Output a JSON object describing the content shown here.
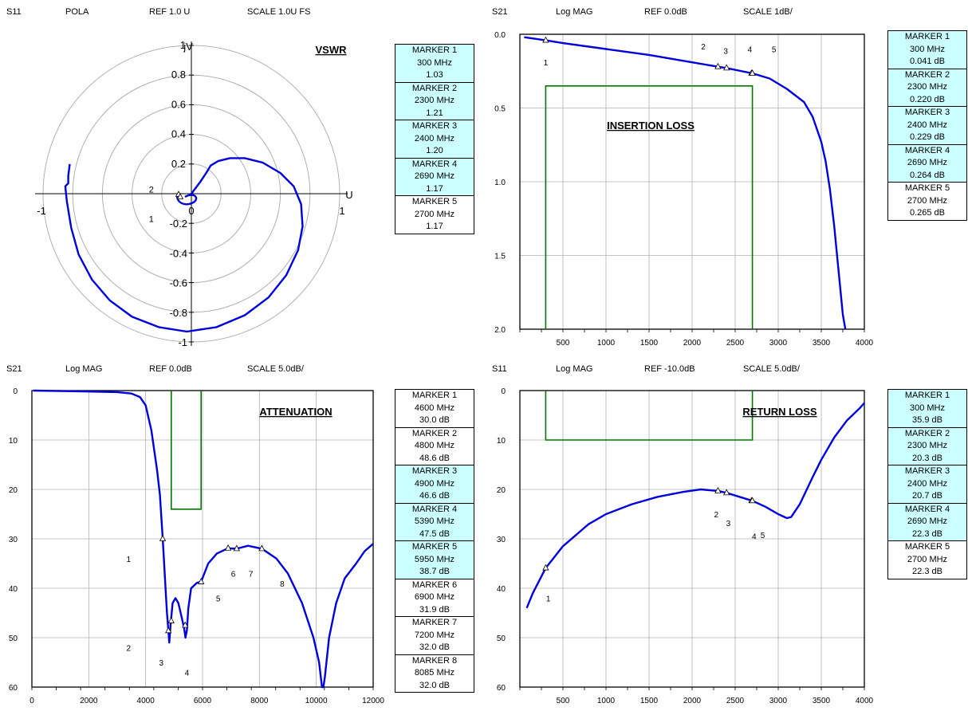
{
  "panels": [
    {
      "header": {
        "param": "S11",
        "format": "POLA",
        "ref": "REF 1.0 U",
        "scale": "SCALE 1.0U FS"
      },
      "title": "VSWR",
      "markers": [
        {
          "name": "MARKER 1",
          "freq": "300 MHz",
          "value": "1.03",
          "highlight": true
        },
        {
          "name": "MARKER 2",
          "freq": "2300 MHz",
          "value": "1.21",
          "highlight": true
        },
        {
          "name": "MARKER 3",
          "freq": "2400 MHz",
          "value": "1.20",
          "highlight": true
        },
        {
          "name": "MARKER 4",
          "freq": "2690 MHz",
          "value": "1.17",
          "highlight": true
        },
        {
          "name": "MARKER 5",
          "freq": "2700 MHz",
          "value": "1.17",
          "highlight": false
        }
      ]
    },
    {
      "header": {
        "param": "S21",
        "format": "Log MAG",
        "ref": "REF 0.0dB",
        "scale": "SCALE 1dB/"
      },
      "title": "INSERTION  LOSS",
      "markers": [
        {
          "name": "MARKER 1",
          "freq": "300 MHz",
          "value": "0.041 dB",
          "highlight": true
        },
        {
          "name": "MARKER 2",
          "freq": "2300 MHz",
          "value": "0.220 dB",
          "highlight": true
        },
        {
          "name": "MARKER 3",
          "freq": "2400 MHz",
          "value": "0.229 dB",
          "highlight": true
        },
        {
          "name": "MARKER 4",
          "freq": "2690 MHz",
          "value": "0.264 dB",
          "highlight": true
        },
        {
          "name": "MARKER 5",
          "freq": "2700 MHz",
          "value": "0.265 dB",
          "highlight": false
        }
      ]
    },
    {
      "header": {
        "param": "S21",
        "format": "Log MAG",
        "ref": "REF 0.0dB",
        "scale": "SCALE 5.0dB/"
      },
      "title": "ATTENUATION",
      "markers": [
        {
          "name": "MARKER 1",
          "freq": "4600 MHz",
          "value": "30.0 dB",
          "highlight": false
        },
        {
          "name": "MARKER 2",
          "freq": "4800 MHz",
          "value": "48.6 dB",
          "highlight": false
        },
        {
          "name": "MARKER 3",
          "freq": "4900 MHz",
          "value": "46.6 dB",
          "highlight": true
        },
        {
          "name": "MARKER 4",
          "freq": "5390 MHz",
          "value": "47.5 dB",
          "highlight": true
        },
        {
          "name": "MARKER 5",
          "freq": "5950 MHz",
          "value": "38.7 dB",
          "highlight": true
        },
        {
          "name": "MARKER 6",
          "freq": "6900 MHz",
          "value": "31.9 dB",
          "highlight": false
        },
        {
          "name": "MARKER 7",
          "freq": "7200 MHz",
          "value": "32.0 dB",
          "highlight": false
        },
        {
          "name": "MARKER 8",
          "freq": "8085 MHz",
          "value": "32.0 dB",
          "highlight": false
        }
      ]
    },
    {
      "header": {
        "param": "S11",
        "format": "Log MAG",
        "ref": "REF -10.0dB",
        "scale": "SCALE 5.0dB/"
      },
      "title": "RETURN LOSS",
      "markers": [
        {
          "name": "MARKER 1",
          "freq": "300 MHz",
          "value": "35.9 dB",
          "highlight": true
        },
        {
          "name": "MARKER 2",
          "freq": "2300 MHz",
          "value": "20.3 dB",
          "highlight": true
        },
        {
          "name": "MARKER 3",
          "freq": "2400 MHz",
          "value": "20.7 dB",
          "highlight": true
        },
        {
          "name": "MARKER 4",
          "freq": "2690 MHz",
          "value": "22.3 dB",
          "highlight": true
        },
        {
          "name": "MARKER 5",
          "freq": "2700 MHz",
          "value": "22.3 dB",
          "highlight": false
        }
      ]
    }
  ],
  "colors": {
    "trace": "#0000dd",
    "limit": "#007700",
    "grid": "#b0b0b0",
    "marker_highlight": "#ccffff"
  },
  "chart_data": [
    {
      "type": "polar",
      "title": "VSWR",
      "r_ticks": [
        "0.2",
        "0.4",
        "0.6",
        "0.8",
        "1"
      ],
      "neg_ticks": [
        "-0.2",
        "-0.4",
        "-0.6",
        "-0.8",
        "-1"
      ],
      "x_left": "-1",
      "x_right": "1",
      "origin": "0",
      "xlabel": "U",
      "ylabel": "jV",
      "marker_labels": [
        {
          "text": "2",
          "x": -0.27,
          "y": 0.03
        },
        {
          "text": "1",
          "x": -0.27,
          "y": -0.17
        }
      ],
      "series": [
        {
          "name": "S11",
          "points": [
            [
              0.0,
              0.0
            ],
            [
              0.06,
              0.08
            ],
            [
              0.1,
              0.14
            ],
            [
              0.13,
              0.19
            ],
            [
              0.18,
              0.22
            ],
            [
              0.26,
              0.24
            ],
            [
              0.36,
              0.24
            ],
            [
              0.48,
              0.21
            ],
            [
              0.6,
              0.14
            ],
            [
              0.69,
              0.05
            ],
            [
              0.74,
              -0.07
            ],
            [
              0.75,
              -0.22
            ],
            [
              0.72,
              -0.38
            ],
            [
              0.64,
              -0.55
            ],
            [
              0.52,
              -0.7
            ],
            [
              0.36,
              -0.82
            ],
            [
              0.17,
              -0.9
            ],
            [
              -0.03,
              -0.93
            ],
            [
              -0.22,
              -0.9
            ],
            [
              -0.4,
              -0.83
            ],
            [
              -0.55,
              -0.72
            ],
            [
              -0.67,
              -0.58
            ],
            [
              -0.76,
              -0.41
            ],
            [
              -0.81,
              -0.23
            ],
            [
              -0.84,
              -0.05
            ],
            [
              -0.85,
              0.05
            ],
            [
              -0.83,
              0.07
            ],
            [
              -0.83,
              0.12
            ],
            [
              -0.82,
              0.2
            ]
          ]
        }
      ]
    },
    {
      "type": "line",
      "title": "INSERTION  LOSS",
      "xlim": [
        0,
        4000
      ],
      "ylim": [
        0,
        2
      ],
      "x_ticks": [
        "500",
        "1000",
        "1500",
        "2000",
        "2500",
        "3000",
        "3500",
        "4000"
      ],
      "y_ticks": [
        "0.0",
        "0.5",
        "1.0",
        "1.5",
        "2.0"
      ],
      "marker_labels": [
        {
          "text": "1",
          "x": 300,
          "y": 0.19
        },
        {
          "text": "2",
          "x": 2130,
          "y": 0.08
        },
        {
          "text": "3",
          "x": 2390,
          "y": 0.11
        },
        {
          "text": "4",
          "x": 2670,
          "y": 0.1
        },
        {
          "text": "5",
          "x": 2950,
          "y": 0.1
        }
      ],
      "limit_lines": [
        {
          "x": [
            300,
            300,
            2700,
            2700
          ],
          "y": [
            2.0,
            0.35,
            0.35,
            2.0
          ]
        }
      ],
      "markers_xy": [
        [
          300,
          0.041
        ],
        [
          2300,
          0.22
        ],
        [
          2400,
          0.229
        ],
        [
          2690,
          0.264
        ],
        [
          2700,
          0.265
        ]
      ],
      "series": [
        {
          "name": "S21",
          "x": [
            50,
            300,
            500,
            1000,
            1500,
            2000,
            2300,
            2400,
            2700,
            2900,
            3100,
            3300,
            3400,
            3500,
            3550,
            3600,
            3650,
            3700,
            3750,
            3780
          ],
          "y": [
            0.02,
            0.041,
            0.06,
            0.1,
            0.14,
            0.19,
            0.22,
            0.229,
            0.265,
            0.3,
            0.37,
            0.46,
            0.56,
            0.73,
            0.86,
            1.05,
            1.3,
            1.6,
            1.9,
            2.0
          ]
        }
      ]
    },
    {
      "type": "line",
      "title": "ATTENUATION",
      "xlim": [
        0,
        12000
      ],
      "ylim": [
        0,
        60
      ],
      "x_ticks": [
        "0",
        "2000",
        "4000",
        "6000",
        "8000",
        "10000",
        "12000"
      ],
      "y_ticks": [
        "0",
        "10",
        "20",
        "30",
        "40",
        "50",
        "60"
      ],
      "marker_labels": [
        {
          "text": "1",
          "x": 3400,
          "y": 34
        },
        {
          "text": "2",
          "x": 3400,
          "y": 52
        },
        {
          "text": "3",
          "x": 4550,
          "y": 55
        },
        {
          "text": "4",
          "x": 5450,
          "y": 57
        },
        {
          "text": "5",
          "x": 6550,
          "y": 42
        },
        {
          "text": "6",
          "x": 7080,
          "y": 37
        },
        {
          "text": "7",
          "x": 7700,
          "y": 37
        },
        {
          "text": "8",
          "x": 8800,
          "y": 39
        }
      ],
      "limit_lines": [
        {
          "x": [
            4900,
            4900,
            5950,
            5950
          ],
          "y": [
            0,
            24,
            24,
            0
          ]
        }
      ],
      "markers_xy": [
        [
          4600,
          30.0
        ],
        [
          4800,
          48.6
        ],
        [
          4900,
          46.6
        ],
        [
          5390,
          47.5
        ],
        [
          5950,
          38.7
        ],
        [
          6900,
          31.9
        ],
        [
          7200,
          32.0
        ],
        [
          8085,
          32.0
        ]
      ],
      "series": [
        {
          "name": "S21",
          "x": [
            50,
            1000,
            2000,
            3000,
            3500,
            3800,
            4000,
            4200,
            4400,
            4500,
            4600,
            4700,
            4750,
            4800,
            4830,
            4880,
            4950,
            5050,
            5150,
            5250,
            5350,
            5400,
            5450,
            5500,
            5600,
            5800,
            5950,
            6200,
            6500,
            6900,
            7200,
            7600,
            8085,
            8600,
            9000,
            9500,
            9900,
            10100,
            10200,
            10250,
            10300,
            10450,
            10700,
            11000,
            11400,
            11700,
            12000
          ],
          "y": [
            0,
            0.1,
            0.2,
            0.3,
            0.6,
            1.3,
            3.0,
            8,
            16,
            21,
            30,
            40,
            45,
            48.6,
            51,
            47,
            43,
            42,
            43,
            45.5,
            48,
            50,
            48.5,
            44,
            40,
            38.9,
            38.7,
            35,
            33,
            31.9,
            32.0,
            31.4,
            32.0,
            34,
            37,
            43,
            50,
            55,
            60,
            60,
            58,
            50,
            43,
            38,
            35,
            32.5,
            31
          ]
        }
      ]
    },
    {
      "type": "line",
      "title": "RETURN LOSS",
      "xlim": [
        0,
        4000
      ],
      "ylim": [
        0,
        60
      ],
      "x_ticks": [
        "500",
        "1000",
        "1500",
        "2000",
        "2500",
        "3000",
        "3500",
        "4000"
      ],
      "y_ticks": [
        "0",
        "10",
        "20",
        "30",
        "40",
        "50",
        "60"
      ],
      "marker_labels": [
        {
          "text": "1",
          "x": 330,
          "y": 42
        },
        {
          "text": "2",
          "x": 2280,
          "y": 25
        },
        {
          "text": "3",
          "x": 2420,
          "y": 26.8
        },
        {
          "text": "4",
          "x": 2720,
          "y": 29.4
        },
        {
          "text": "5",
          "x": 2820,
          "y": 29.2
        }
      ],
      "limit_lines": [
        {
          "x": [
            300,
            300,
            2700,
            2700
          ],
          "y": [
            0,
            10,
            10,
            0
          ]
        }
      ],
      "markers_xy": [
        [
          300,
          35.9
        ],
        [
          2300,
          20.3
        ],
        [
          2400,
          20.7
        ],
        [
          2690,
          22.3
        ],
        [
          2700,
          22.3
        ]
      ],
      "series": [
        {
          "name": "S11",
          "x": [
            80,
            150,
            300,
            500,
            800,
            1000,
            1300,
            1600,
            1900,
            2100,
            2300,
            2400,
            2700,
            2850,
            3000,
            3100,
            3150,
            3250,
            3400,
            3500,
            3650,
            3800,
            3950,
            4000
          ],
          "y": [
            44,
            41,
            35.9,
            31.5,
            27,
            25,
            23,
            21.5,
            20.5,
            20.0,
            20.3,
            20.7,
            22.3,
            23.5,
            25,
            25.8,
            25.6,
            23,
            17.5,
            14,
            9.5,
            6,
            3.5,
            2.5
          ]
        }
      ]
    }
  ]
}
